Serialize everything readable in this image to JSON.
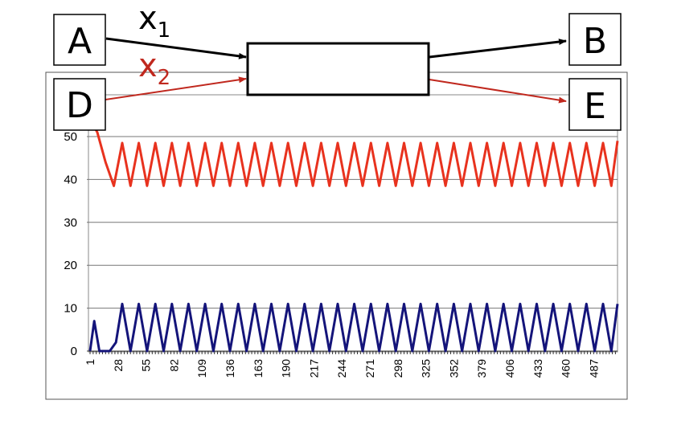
{
  "diagram": {
    "nodes": {
      "a": "A",
      "b": "B",
      "d": "D",
      "e": "E"
    },
    "inputs": [
      {
        "name": "x",
        "subscript": "1",
        "color": "#000000"
      },
      {
        "name": "x",
        "subscript": "2",
        "color": "#c0281e"
      }
    ]
  },
  "chart_data": {
    "type": "line",
    "title": "",
    "xlabel": "",
    "ylabel": "",
    "ylim": [
      0,
      50
    ],
    "yticks": [
      0,
      10,
      20,
      30,
      40,
      50
    ],
    "xticks": [
      "1",
      "28",
      "55",
      "82",
      "109",
      "136",
      "163",
      "190",
      "217",
      "244",
      "271",
      "298",
      "325",
      "352",
      "379",
      "406",
      "433",
      "460",
      "487"
    ],
    "xrange": [
      1,
      510
    ],
    "grid": "horizontal",
    "series": [
      {
        "color": "#e8321e",
        "points": [
          [
            1,
            54
          ],
          [
            8,
            51
          ],
          [
            16,
            44
          ],
          [
            24,
            38.5
          ],
          [
            32,
            48.5
          ],
          [
            40,
            38.5
          ],
          [
            48,
            48.5
          ],
          [
            56,
            38.5
          ],
          [
            64,
            48.5
          ],
          [
            72,
            38.5
          ],
          [
            80,
            48.5
          ],
          [
            88,
            38.5
          ],
          [
            96,
            48.5
          ],
          [
            104,
            38.5
          ],
          [
            112,
            48.5
          ],
          [
            120,
            38.5
          ],
          [
            128,
            48.5
          ],
          [
            136,
            38.5
          ],
          [
            144,
            48.5
          ],
          [
            152,
            38.5
          ],
          [
            160,
            48.5
          ],
          [
            168,
            38.5
          ],
          [
            176,
            48.5
          ],
          [
            184,
            38.5
          ],
          [
            192,
            48.5
          ],
          [
            200,
            38.5
          ],
          [
            208,
            48.5
          ],
          [
            216,
            38.5
          ],
          [
            224,
            48.5
          ],
          [
            232,
            38.5
          ],
          [
            240,
            48.5
          ],
          [
            248,
            38.5
          ],
          [
            256,
            48.5
          ],
          [
            264,
            38.5
          ],
          [
            272,
            48.5
          ],
          [
            280,
            38.5
          ],
          [
            288,
            48.5
          ],
          [
            296,
            38.5
          ],
          [
            304,
            48.5
          ],
          [
            312,
            38.5
          ],
          [
            320,
            48.5
          ],
          [
            328,
            38.5
          ],
          [
            336,
            48.5
          ],
          [
            344,
            38.5
          ],
          [
            352,
            48.5
          ],
          [
            360,
            38.5
          ],
          [
            368,
            48.5
          ],
          [
            376,
            38.5
          ],
          [
            384,
            48.5
          ],
          [
            392,
            38.5
          ],
          [
            400,
            48.5
          ],
          [
            408,
            38.5
          ],
          [
            416,
            48.5
          ],
          [
            424,
            38.5
          ],
          [
            432,
            48.5
          ],
          [
            440,
            38.5
          ],
          [
            448,
            48.5
          ],
          [
            456,
            38.5
          ],
          [
            464,
            48.5
          ],
          [
            472,
            38.5
          ],
          [
            480,
            48.5
          ],
          [
            488,
            38.5
          ],
          [
            496,
            48.5
          ],
          [
            504,
            38.5
          ],
          [
            510,
            49
          ]
        ]
      },
      {
        "color": "#14147a",
        "points": [
          [
            1,
            0
          ],
          [
            5,
            7
          ],
          [
            10,
            0
          ],
          [
            20,
            0
          ],
          [
            26,
            2
          ],
          [
            32,
            11
          ],
          [
            40,
            0
          ],
          [
            48,
            11
          ],
          [
            56,
            0
          ],
          [
            64,
            11
          ],
          [
            72,
            0
          ],
          [
            80,
            11
          ],
          [
            88,
            0
          ],
          [
            96,
            11
          ],
          [
            104,
            0
          ],
          [
            112,
            11
          ],
          [
            120,
            0
          ],
          [
            128,
            11
          ],
          [
            136,
            0
          ],
          [
            144,
            11
          ],
          [
            152,
            0
          ],
          [
            160,
            11
          ],
          [
            168,
            0
          ],
          [
            176,
            11
          ],
          [
            184,
            0
          ],
          [
            192,
            11
          ],
          [
            200,
            0
          ],
          [
            208,
            11
          ],
          [
            216,
            0
          ],
          [
            224,
            11
          ],
          [
            232,
            0
          ],
          [
            240,
            11
          ],
          [
            248,
            0
          ],
          [
            256,
            11
          ],
          [
            264,
            0
          ],
          [
            272,
            11
          ],
          [
            280,
            0
          ],
          [
            288,
            11
          ],
          [
            296,
            0
          ],
          [
            304,
            11
          ],
          [
            312,
            0
          ],
          [
            320,
            11
          ],
          [
            328,
            0
          ],
          [
            336,
            11
          ],
          [
            344,
            0
          ],
          [
            352,
            11
          ],
          [
            360,
            0
          ],
          [
            368,
            11
          ],
          [
            376,
            0
          ],
          [
            384,
            11
          ],
          [
            392,
            0
          ],
          [
            400,
            11
          ],
          [
            408,
            0
          ],
          [
            416,
            11
          ],
          [
            424,
            0
          ],
          [
            432,
            11
          ],
          [
            440,
            0
          ],
          [
            448,
            11
          ],
          [
            456,
            0
          ],
          [
            464,
            11
          ],
          [
            472,
            0
          ],
          [
            480,
            11
          ],
          [
            488,
            0
          ],
          [
            496,
            11
          ],
          [
            504,
            0
          ],
          [
            510,
            11
          ]
        ]
      }
    ]
  }
}
